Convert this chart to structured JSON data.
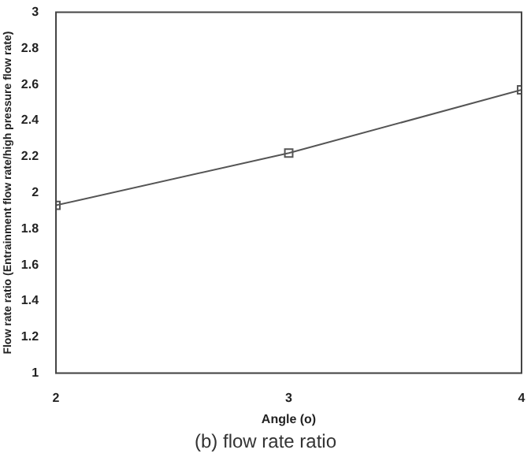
{
  "chart_data": {
    "type": "line",
    "xlabel": "Angle (o)",
    "ylabel": "Flow rate ratio (Entrainment flow rate/high pressure flow rate)",
    "x": [
      2,
      3,
      4
    ],
    "series": [
      {
        "color": "#555555",
        "values": [
          1.93,
          2.22,
          2.57
        ]
      }
    ],
    "xlim": [
      2,
      4
    ],
    "xticks": [
      2,
      3,
      4
    ],
    "ylim": [
      1,
      3
    ],
    "yticks": [
      1,
      1.2,
      1.4,
      1.6,
      1.8,
      2,
      2.2,
      2.4,
      2.6,
      2.8,
      3
    ],
    "grid": false,
    "legend": false,
    "marker": "square",
    "line_style": "solid",
    "annotations": [
      "(b) flow rate ratio"
    ]
  }
}
